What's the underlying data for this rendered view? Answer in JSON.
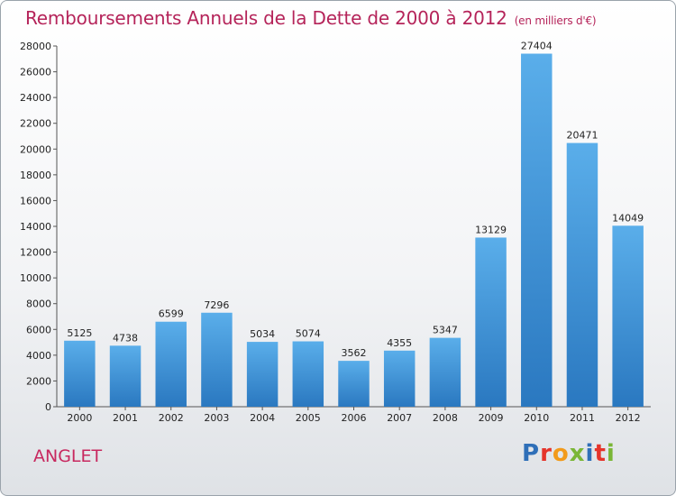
{
  "title": "Remboursements Annuels de la Dette de 2000 à 2012",
  "subtitle": "(en milliers d'€)",
  "city": "ANGLET",
  "logo": {
    "letters": [
      "P",
      "r",
      "o",
      "x",
      "i",
      "t",
      "i"
    ],
    "colors": [
      "#2f6fb8",
      "#e5342b",
      "#f29a1b",
      "#7ab636",
      "#2f6fb8",
      "#e5342b",
      "#7ab636"
    ]
  },
  "chart_data": {
    "type": "bar",
    "title": "Remboursements Annuels de la Dette de 2000 à 2012",
    "categories": [
      "2000",
      "2001",
      "2002",
      "2003",
      "2004",
      "2005",
      "2006",
      "2007",
      "2008",
      "2009",
      "2010",
      "2011",
      "2012"
    ],
    "values": [
      5125,
      4738,
      6599,
      7296,
      5034,
      5074,
      3562,
      4355,
      5347,
      13129,
      27404,
      20471,
      14049
    ],
    "ylim": [
      0,
      28000
    ],
    "yticks": [
      0,
      2000,
      4000,
      6000,
      8000,
      10000,
      12000,
      14000,
      16000,
      18000,
      20000,
      22000,
      24000,
      26000,
      28000
    ],
    "grid": false,
    "bar_color": "#4a9ee0",
    "xlabel": "",
    "ylabel": ""
  }
}
